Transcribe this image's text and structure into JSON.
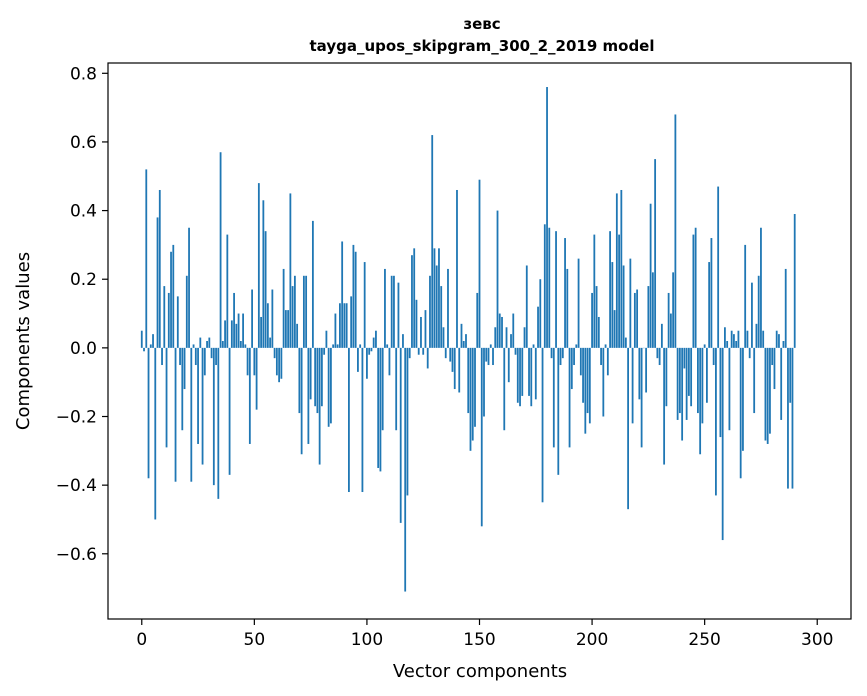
{
  "chart_data": {
    "type": "bar",
    "title": "зевс",
    "subtitle": "tayga_upos_skipgram_300_2_2019 model",
    "xlabel": "Vector components",
    "ylabel": "Components values",
    "xlim": [
      -15,
      315
    ],
    "ylim": [
      -0.79,
      0.83
    ],
    "xticks": [
      0,
      50,
      100,
      150,
      200,
      250,
      300
    ],
    "yticks": [
      -0.6,
      -0.4,
      -0.2,
      0.0,
      0.2,
      0.4,
      0.6,
      0.8
    ],
    "xtick_labels": [
      "0",
      "50",
      "100",
      "150",
      "200",
      "250",
      "300"
    ],
    "ytick_labels": [
      "−0.6",
      "−0.4",
      "−0.2",
      "0.0",
      "0.2",
      "0.4",
      "0.6",
      "0.8"
    ],
    "bar_color": "#1f77b4",
    "values": [
      0.05,
      -0.01,
      0.52,
      -0.38,
      0.01,
      0.04,
      -0.5,
      0.38,
      0.46,
      -0.05,
      0.18,
      -0.29,
      0.16,
      0.28,
      0.3,
      -0.39,
      0.15,
      -0.05,
      -0.24,
      -0.12,
      0.21,
      0.35,
      -0.39,
      0.01,
      -0.05,
      -0.28,
      0.03,
      -0.34,
      -0.08,
      0.02,
      0.03,
      -0.03,
      -0.4,
      -0.05,
      -0.44,
      0.57,
      0.02,
      0.08,
      0.33,
      -0.37,
      0.08,
      0.16,
      0.07,
      0.1,
      0.02,
      0.1,
      0.01,
      -0.08,
      -0.28,
      0.17,
      -0.08,
      -0.18,
      0.48,
      0.09,
      0.43,
      0.34,
      0.13,
      0.03,
      0.17,
      -0.03,
      -0.08,
      -0.1,
      -0.09,
      0.23,
      0.11,
      0.11,
      0.45,
      0.18,
      0.21,
      0.07,
      -0.19,
      -0.31,
      0.21,
      0.21,
      -0.28,
      -0.15,
      0.37,
      -0.17,
      -0.19,
      -0.34,
      -0.17,
      -0.02,
      0.05,
      -0.23,
      -0.22,
      0.01,
      0.1,
      0.01,
      0.13,
      0.31,
      0.13,
      0.13,
      -0.42,
      0.15,
      0.3,
      0.28,
      -0.07,
      0.01,
      -0.42,
      0.25,
      -0.09,
      -0.02,
      -0.01,
      0.03,
      0.05,
      -0.35,
      -0.36,
      -0.24,
      0.23,
      0.01,
      -0.08,
      0.21,
      0.21,
      -0.24,
      0.19,
      -0.51,
      0.04,
      -0.71,
      -0.43,
      -0.03,
      0.27,
      0.29,
      0.14,
      -0.02,
      0.09,
      -0.02,
      0.11,
      -0.06,
      0.21,
      0.62,
      0.29,
      0.24,
      0.29,
      0.18,
      0.06,
      -0.03,
      0.23,
      -0.04,
      -0.07,
      -0.12,
      0.46,
      -0.13,
      0.07,
      0.02,
      0.04,
      -0.19,
      -0.3,
      -0.27,
      -0.23,
      0.16,
      0.49,
      -0.52,
      -0.2,
      -0.04,
      -0.05,
      0.01,
      -0.05,
      0.06,
      0.4,
      0.1,
      0.09,
      -0.24,
      0.06,
      -0.1,
      0.04,
      0.1,
      -0.02,
      -0.16,
      -0.17,
      -0.14,
      0.06,
      0.24,
      -0.14,
      -0.17,
      0.01,
      -0.15,
      0.12,
      0.2,
      -0.45,
      0.36,
      0.76,
      0.35,
      -0.03,
      -0.29,
      0.34,
      -0.37,
      -0.05,
      -0.03,
      0.32,
      0.23,
      -0.29,
      -0.12,
      -0.05,
      0.01,
      0.26,
      -0.08,
      -0.16,
      -0.25,
      -0.19,
      -0.22,
      0.16,
      0.33,
      0.18,
      0.09,
      -0.05,
      -0.2,
      0.01,
      -0.08,
      0.34,
      0.25,
      0.11,
      0.45,
      0.33,
      0.46,
      0.24,
      0.03,
      -0.47,
      0.26,
      -0.22,
      0.16,
      0.17,
      -0.15,
      -0.29,
      0.0,
      -0.13,
      0.18,
      0.42,
      0.22,
      0.55,
      -0.03,
      -0.05,
      0.07,
      -0.34,
      -0.17,
      0.16,
      0.1,
      0.22,
      0.68,
      -0.21,
      -0.19,
      -0.27,
      -0.06,
      -0.21,
      -0.14,
      -0.17,
      0.33,
      0.35,
      -0.19,
      -0.31,
      -0.22,
      0.01,
      -0.16,
      0.25,
      0.32,
      -0.05,
      -0.43,
      0.47,
      -0.26,
      -0.56,
      0.06,
      0.02,
      -0.24,
      0.05,
      0.04,
      0.02,
      0.05,
      -0.38,
      -0.3,
      0.3,
      0.05,
      -0.03,
      0.19,
      -0.19,
      0.07,
      0.21,
      0.35,
      0.05,
      -0.27,
      -0.28,
      -0.25,
      -0.05,
      -0.12,
      0.05,
      0.04,
      -0.21,
      0.02,
      0.23,
      -0.41,
      -0.16,
      -0.41,
      0.39
    ]
  }
}
